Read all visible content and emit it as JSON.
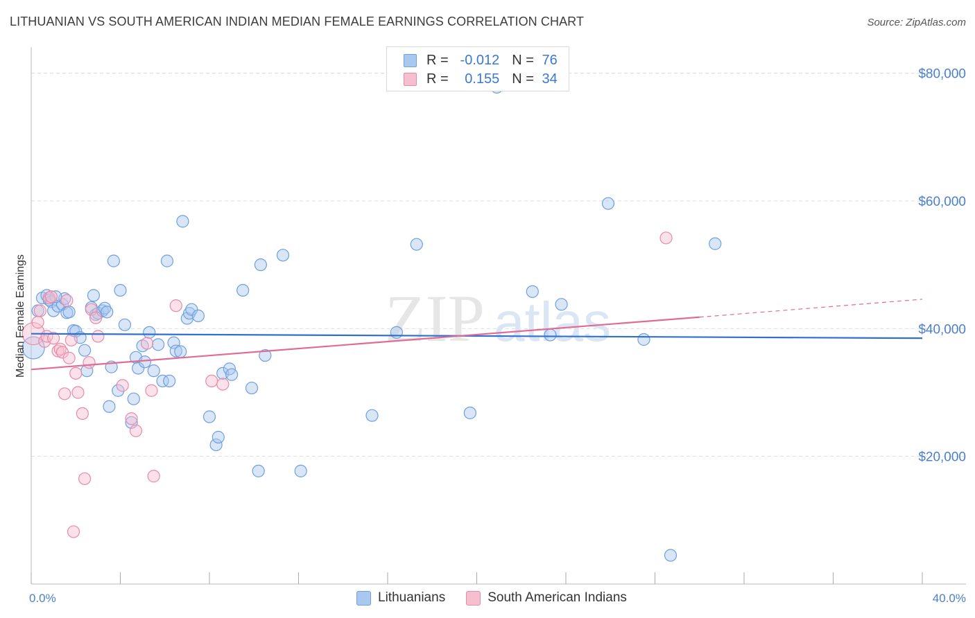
{
  "header": {
    "title": "LITHUANIAN VS SOUTH AMERICAN INDIAN MEDIAN FEMALE EARNINGS CORRELATION CHART",
    "source": "Source: ZipAtlas.com"
  },
  "watermark": {
    "part1": "ZIP",
    "part2": "atlas"
  },
  "colors": {
    "blue_fill": "#a9c8f0",
    "blue_stroke": "#6e9fdf",
    "blue_line": "#2f6fd0",
    "pink_fill": "#f6bfd0",
    "pink_stroke": "#e88aa7",
    "pink_line": "#e06c93",
    "tick_text": "#4a7fd0",
    "grid": "#dddddd"
  },
  "legend_top": {
    "rows": [
      {
        "r_label": "R = ",
        "r_value": "-0.012",
        "n_label": "N = ",
        "n_value": "76",
        "series": "blue"
      },
      {
        "r_label": "R = ",
        "r_value": "0.155",
        "n_label": "N = ",
        "n_value": "34",
        "series": "pink"
      }
    ]
  },
  "legend_bottom": {
    "items": [
      "Lithuanians",
      "South American Indians"
    ]
  },
  "chart_data": {
    "type": "scatter",
    "title": "LITHUANIAN VS SOUTH AMERICAN INDIAN MEDIAN FEMALE EARNINGS CORRELATION CHART",
    "xlabel": "",
    "ylabel": "Median Female Earnings",
    "xlim": [
      0,
      40
    ],
    "ylim": [
      0,
      83000
    ],
    "x_tick_labels": [
      "0.0%",
      "40.0%"
    ],
    "y_ticks": [
      20000,
      40000,
      60000,
      80000
    ],
    "y_tick_labels": [
      "$20,000",
      "$40,000",
      "$60,000",
      "$80,000"
    ],
    "grid": "horizontal dashed",
    "series": [
      {
        "name": "Lithuanians",
        "color": "blue",
        "trend": {
          "x": [
            0,
            40
          ],
          "y": [
            39200,
            38500
          ]
        },
        "points": [
          [
            0.1,
            37000
          ],
          [
            0.3,
            42800
          ],
          [
            0.5,
            44800
          ],
          [
            0.7,
            45200
          ],
          [
            0.8,
            44500
          ],
          [
            0.9,
            44200
          ],
          [
            1.0,
            42800
          ],
          [
            1.2,
            43500
          ],
          [
            1.4,
            43800
          ],
          [
            1.5,
            44700
          ],
          [
            1.6,
            42500
          ],
          [
            1.7,
            42600
          ],
          [
            1.9,
            39700
          ],
          [
            2.0,
            39600
          ],
          [
            2.2,
            38600
          ],
          [
            2.4,
            36600
          ],
          [
            2.5,
            33400
          ],
          [
            2.7,
            43300
          ],
          [
            2.8,
            45200
          ],
          [
            2.9,
            42200
          ],
          [
            3.0,
            42400
          ],
          [
            3.2,
            42800
          ],
          [
            3.3,
            43200
          ],
          [
            3.4,
            42600
          ],
          [
            3.5,
            27800
          ],
          [
            3.6,
            34000
          ],
          [
            3.7,
            50600
          ],
          [
            3.9,
            30300
          ],
          [
            4.0,
            46000
          ],
          [
            4.2,
            40600
          ],
          [
            4.5,
            25300
          ],
          [
            4.6,
            29000
          ],
          [
            4.7,
            35500
          ],
          [
            4.8,
            33800
          ],
          [
            5.0,
            37300
          ],
          [
            5.1,
            34800
          ],
          [
            5.3,
            39400
          ],
          [
            5.5,
            33400
          ],
          [
            5.7,
            37500
          ],
          [
            5.9,
            31800
          ],
          [
            6.1,
            50600
          ],
          [
            6.2,
            31800
          ],
          [
            6.4,
            37800
          ],
          [
            6.5,
            36500
          ],
          [
            6.7,
            36400
          ],
          [
            6.8,
            56800
          ],
          [
            7.0,
            41600
          ],
          [
            7.1,
            42400
          ],
          [
            7.2,
            43000
          ],
          [
            7.5,
            42000
          ],
          [
            8.0,
            26200
          ],
          [
            8.3,
            21800
          ],
          [
            8.4,
            23000
          ],
          [
            8.6,
            33000
          ],
          [
            8.9,
            33700
          ],
          [
            9.0,
            32800
          ],
          [
            9.5,
            46000
          ],
          [
            9.9,
            30700
          ],
          [
            10.2,
            17700
          ],
          [
            10.3,
            50000
          ],
          [
            10.5,
            35800
          ],
          [
            11.3,
            51500
          ],
          [
            12.1,
            17700
          ],
          [
            15.3,
            26400
          ],
          [
            16.4,
            39400
          ],
          [
            17.3,
            53200
          ],
          [
            19.7,
            26800
          ],
          [
            20.9,
            77800
          ],
          [
            22.5,
            45800
          ],
          [
            23.3,
            39000
          ],
          [
            23.8,
            43800
          ],
          [
            25.9,
            59600
          ],
          [
            27.5,
            38300
          ],
          [
            28.7,
            4500
          ],
          [
            30.7,
            53300
          ],
          [
            1.1,
            45000
          ]
        ]
      },
      {
        "name": "South American Indians",
        "color": "pink",
        "trend": {
          "x": [
            0,
            30
          ],
          "y": [
            33600,
            41800
          ],
          "dashed_to": {
            "x": 40,
            "y": 44600
          }
        },
        "points": [
          [
            0.1,
            39200
          ],
          [
            0.3,
            41000
          ],
          [
            0.4,
            42800
          ],
          [
            0.6,
            38000
          ],
          [
            0.7,
            38800
          ],
          [
            0.8,
            44800
          ],
          [
            0.9,
            45000
          ],
          [
            1.0,
            38500
          ],
          [
            1.2,
            36500
          ],
          [
            1.3,
            36800
          ],
          [
            1.4,
            36300
          ],
          [
            1.5,
            29800
          ],
          [
            1.6,
            44400
          ],
          [
            1.7,
            35400
          ],
          [
            1.8,
            38200
          ],
          [
            2.0,
            33000
          ],
          [
            2.1,
            30000
          ],
          [
            2.3,
            26700
          ],
          [
            2.4,
            16500
          ],
          [
            2.6,
            34700
          ],
          [
            2.7,
            43000
          ],
          [
            2.9,
            41700
          ],
          [
            4.1,
            31100
          ],
          [
            4.5,
            25900
          ],
          [
            4.7,
            24000
          ],
          [
            5.2,
            37700
          ],
          [
            5.4,
            30300
          ],
          [
            5.5,
            16900
          ],
          [
            6.5,
            43600
          ],
          [
            8.1,
            31800
          ],
          [
            8.6,
            31300
          ],
          [
            3.0,
            38800
          ],
          [
            1.9,
            8200
          ],
          [
            28.5,
            54200
          ]
        ]
      }
    ]
  }
}
